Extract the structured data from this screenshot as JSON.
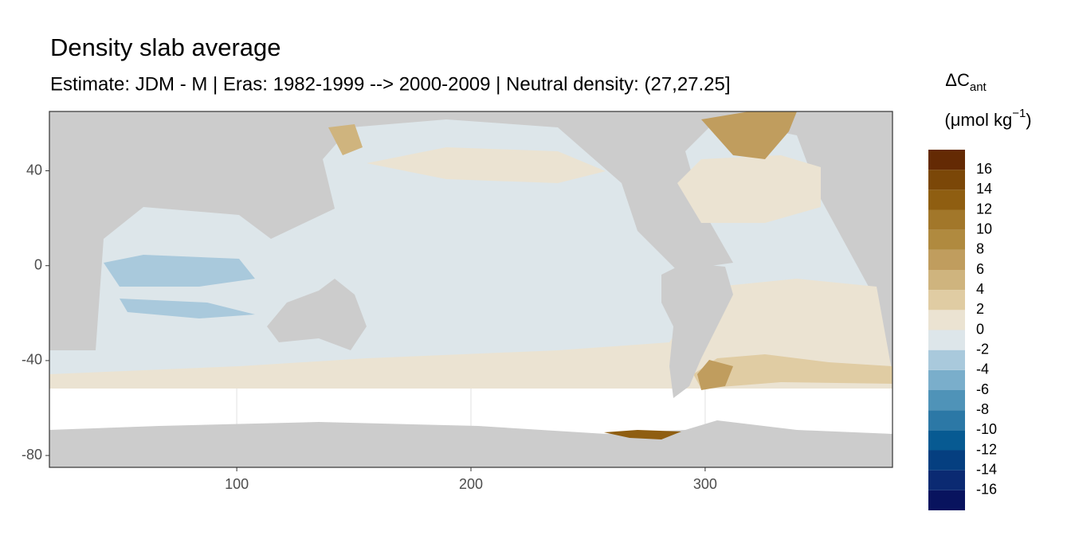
{
  "chart_data": {
    "type": "map",
    "title": "Density slab average",
    "subtitle": "Estimate: JDM - M | Eras: 1982-1999 --> 2000-2009 | Neutral density: (27,27.25]",
    "xlim": [
      20,
      380
    ],
    "ylim": [
      -85,
      65
    ],
    "xticks": [
      100,
      200,
      300
    ],
    "yticks": [
      -80,
      -40,
      0,
      40
    ],
    "grid": true,
    "legend_title": {
      "main": "ΔC",
      "sub": "ant",
      "units": "(μmol kg",
      "units_sup": "−1",
      "units_end": ")"
    },
    "legend_breaks": [
      -18,
      -16,
      -14,
      -12,
      -10,
      -8,
      -6,
      -4,
      -2,
      0,
      2,
      4,
      6,
      8,
      10,
      12,
      14,
      16,
      18
    ],
    "legend_colors": [
      "#08135e",
      "#0b2a72",
      "#053f80",
      "#075a92",
      "#2c78a6",
      "#4f93b8",
      "#7aaecb",
      "#a9c9dc",
      "#dde6ea",
      "#ebe3d2",
      "#e0cca3",
      "#cfb47e",
      "#c09d5e",
      "#b08a3f",
      "#a2772a",
      "#8f5e11",
      "#7b4708",
      "#642a04"
    ],
    "legend_ticks": [
      -16,
      -14,
      -12,
      -10,
      -8,
      -6,
      -4,
      -2,
      0,
      2,
      4,
      6,
      8,
      10,
      12,
      14,
      16
    ]
  }
}
